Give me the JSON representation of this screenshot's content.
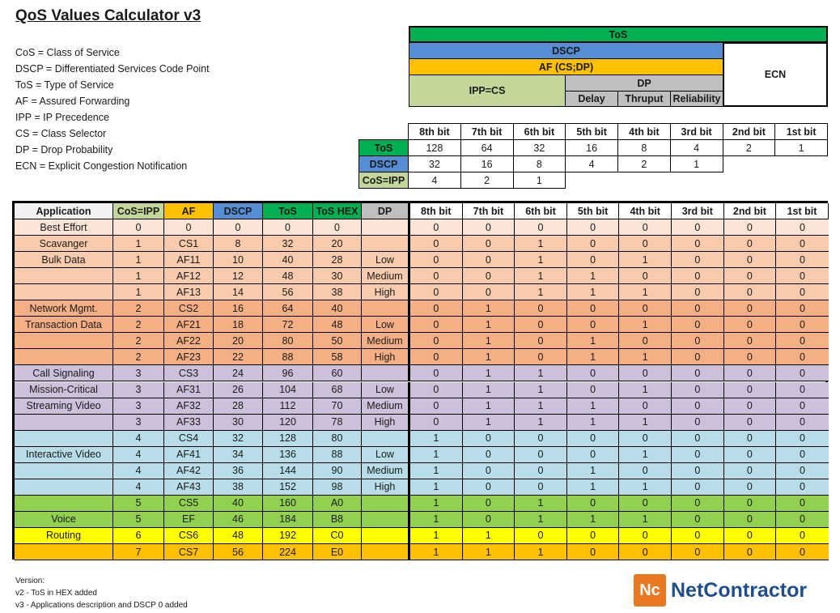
{
  "title": "QoS Values Calculator v3",
  "legend": [
    "CoS = Class of Service",
    "DSCP = Differentiated Services Code Point",
    "ToS = Type of Service",
    "AF = Assured Forwarding",
    "IPP = IP Precedence",
    "CS = Class Selector",
    "DP = Drop Probability",
    "ECN = Explicit Congestion Notification"
  ],
  "diagram": {
    "tos": "ToS",
    "dscp": "DSCP",
    "af": "AF (CS;DP)",
    "ipp": "IPP=CS",
    "dp": "DP",
    "delay": "Delay",
    "thruput": "Thruput",
    "reliability": "Reliability",
    "ecn": "ECN"
  },
  "bits": [
    "8th bit",
    "7th bit",
    "6th bit",
    "5th bit",
    "4th bit",
    "3rd bit",
    "2nd bit",
    "1st bit"
  ],
  "weights": [
    {
      "label": "ToS",
      "values": [
        "128",
        "64",
        "32",
        "16",
        "8",
        "4",
        "2",
        "1"
      ],
      "color": "#00b050"
    },
    {
      "label": "DSCP",
      "values": [
        "32",
        "16",
        "8",
        "4",
        "2",
        "1"
      ],
      "color": "#558ed5"
    },
    {
      "label": "CoS=IPP",
      "values": [
        "4",
        "2",
        "1"
      ],
      "color": "#c4d79b"
    }
  ],
  "table": {
    "headers": [
      "Application",
      "CoS=IPP",
      "AF",
      "DSCP",
      "ToS",
      "ToS HEX",
      "DP",
      "8th bit",
      "7th bit",
      "6th bit",
      "5th bit",
      "4th bit",
      "3rd bit",
      "2nd bit",
      "1st bit"
    ],
    "header_colors": [
      "#f2f2f2",
      "#c4d79b",
      "#ffc000",
      "#558ed5",
      "#00b050",
      "#00b050",
      "#bfbfbf",
      "#fff",
      "#fff",
      "#fff",
      "#fff",
      "#fff",
      "#fff",
      "#fff",
      "#fff"
    ],
    "rows": [
      {
        "c": "#fce4d6",
        "v": [
          "Best Effort",
          "0",
          "0",
          "0",
          "0",
          "0",
          "",
          "0",
          "0",
          "0",
          "0",
          "0",
          "0",
          "0",
          "0"
        ]
      },
      {
        "c": "#f8cbad",
        "v": [
          "Scavanger",
          "1",
          "CS1",
          "8",
          "32",
          "20",
          "",
          "0",
          "0",
          "1",
          "0",
          "0",
          "0",
          "0",
          "0"
        ]
      },
      {
        "c": "#f8cbad",
        "v": [
          "Bulk Data",
          "1",
          "AF11",
          "10",
          "40",
          "28",
          "Low",
          "0",
          "0",
          "1",
          "0",
          "1",
          "0",
          "0",
          "0"
        ]
      },
      {
        "c": "#f8cbad",
        "v": [
          "",
          "1",
          "AF12",
          "12",
          "48",
          "30",
          "Medium",
          "0",
          "0",
          "1",
          "1",
          "0",
          "0",
          "0",
          "0"
        ]
      },
      {
        "c": "#f8cbad",
        "v": [
          "",
          "1",
          "AF13",
          "14",
          "56",
          "38",
          "High",
          "0",
          "0",
          "1",
          "1",
          "1",
          "0",
          "0",
          "0"
        ]
      },
      {
        "c": "#f4b084",
        "v": [
          "Network Mgmt.",
          "2",
          "CS2",
          "16",
          "64",
          "40",
          "",
          "0",
          "1",
          "0",
          "0",
          "0",
          "0",
          "0",
          "0"
        ]
      },
      {
        "c": "#f4b084",
        "v": [
          "Transaction Data",
          "2",
          "AF21",
          "18",
          "72",
          "48",
          "Low",
          "0",
          "1",
          "0",
          "0",
          "1",
          "0",
          "0",
          "0"
        ]
      },
      {
        "c": "#f4b084",
        "v": [
          "",
          "2",
          "AF22",
          "20",
          "80",
          "50",
          "Medium",
          "0",
          "1",
          "0",
          "1",
          "0",
          "0",
          "0",
          "0"
        ]
      },
      {
        "c": "#f4b084",
        "v": [
          "",
          "2",
          "AF23",
          "22",
          "88",
          "58",
          "High",
          "0",
          "1",
          "0",
          "1",
          "1",
          "0",
          "0",
          "0"
        ]
      },
      {
        "c": "#ccc0da",
        "v": [
          "Call Signaling",
          "3",
          "CS3",
          "24",
          "96",
          "60",
          "",
          "0",
          "1",
          "1",
          "0",
          "0",
          "0",
          "0",
          "0"
        ]
      },
      {
        "c": "#ccc0da",
        "v": [
          "Mission-Critical",
          "3",
          "AF31",
          "26",
          "104",
          "68",
          "Low",
          "0",
          "1",
          "1",
          "0",
          "1",
          "0",
          "0",
          "0"
        ]
      },
      {
        "c": "#ccc0da",
        "v": [
          "Streaming Video",
          "3",
          "AF32",
          "28",
          "112",
          "70",
          "Medium",
          "0",
          "1",
          "1",
          "1",
          "0",
          "0",
          "0",
          "0"
        ]
      },
      {
        "c": "#ccc0da",
        "v": [
          "",
          "3",
          "AF33",
          "30",
          "120",
          "78",
          "High",
          "0",
          "1",
          "1",
          "1",
          "1",
          "0",
          "0",
          "0"
        ]
      },
      {
        "c": "#b7dee8",
        "v": [
          "",
          "4",
          "CS4",
          "32",
          "128",
          "80",
          "",
          "1",
          "0",
          "0",
          "0",
          "0",
          "0",
          "0",
          "0"
        ]
      },
      {
        "c": "#b7dee8",
        "v": [
          "Interactive Video",
          "4",
          "AF41",
          "34",
          "136",
          "88",
          "Low",
          "1",
          "0",
          "0",
          "0",
          "1",
          "0",
          "0",
          "0"
        ]
      },
      {
        "c": "#b7dee8",
        "v": [
          "",
          "4",
          "AF42",
          "36",
          "144",
          "90",
          "Medium",
          "1",
          "0",
          "0",
          "1",
          "0",
          "0",
          "0",
          "0"
        ]
      },
      {
        "c": "#b7dee8",
        "v": [
          "",
          "4",
          "AF43",
          "38",
          "152",
          "98",
          "High",
          "1",
          "0",
          "0",
          "1",
          "1",
          "0",
          "0",
          "0"
        ]
      },
      {
        "c": "#92d050",
        "v": [
          "",
          "5",
          "CS5",
          "40",
          "160",
          "A0",
          "",
          "1",
          "0",
          "1",
          "0",
          "0",
          "0",
          "0",
          "0"
        ]
      },
      {
        "c": "#92d050",
        "v": [
          "Voice",
          "5",
          "EF",
          "46",
          "184",
          "B8",
          "",
          "1",
          "0",
          "1",
          "1",
          "1",
          "0",
          "0",
          "0"
        ]
      },
      {
        "c": "#ffff00",
        "v": [
          "Routing",
          "6",
          "CS6",
          "48",
          "192",
          "C0",
          "",
          "1",
          "1",
          "0",
          "0",
          "0",
          "0",
          "0",
          "0"
        ]
      },
      {
        "c": "#ffc000",
        "v": [
          "",
          "7",
          "CS7",
          "56",
          "224",
          "E0",
          "",
          "1",
          "1",
          "1",
          "0",
          "0",
          "0",
          "0",
          "0"
        ]
      }
    ]
  },
  "footer": [
    "Version:",
    "v2 - ToS in HEX added",
    "v3 - Applications description and DSCP 0  added"
  ],
  "logo": {
    "mark": "Nc",
    "name": "NetContractor"
  }
}
